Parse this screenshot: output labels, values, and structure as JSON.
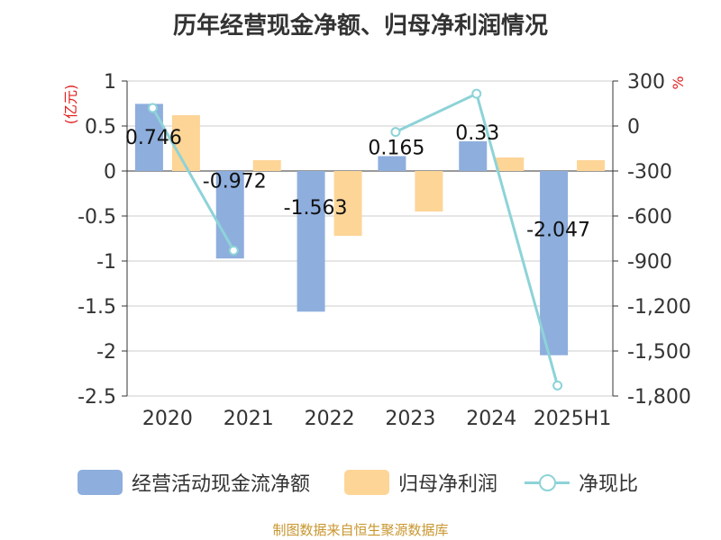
{
  "title": "历年经营现金净额、归母净利润情况",
  "source": "制图数据来自恒生聚源数据库",
  "chart_data": {
    "type": "bar",
    "categories": [
      "2020",
      "2021",
      "2022",
      "2023",
      "2024",
      "2025H1"
    ],
    "left_axis": {
      "unit": "(亿元)",
      "ylim": [
        -2.5,
        1
      ],
      "ticks": [
        "1",
        "0.5",
        "0",
        "-0.5",
        "-1",
        "-1.5",
        "-2",
        "-2.5"
      ],
      "tick_values": [
        1,
        0.5,
        0,
        -0.5,
        -1,
        -1.5,
        -2,
        -2.5
      ]
    },
    "right_axis": {
      "unit": "%",
      "ylim": [
        -1800,
        300
      ],
      "ticks": [
        "300",
        "0",
        "-300",
        "-600",
        "-900",
        "-1,200",
        "-1,500",
        "-1,800"
      ],
      "tick_values": [
        300,
        0,
        -300,
        -600,
        -900,
        -1200,
        -1500,
        -1800
      ]
    },
    "series": [
      {
        "name": "经营活动现金流净额",
        "kind": "bar",
        "axis": "left",
        "color": "#8eaedd",
        "values": [
          0.746,
          -0.972,
          -1.563,
          0.165,
          0.33,
          -2.047
        ],
        "labels": [
          "0.746",
          "-0.972",
          "-1.563",
          "0.165",
          "0.33",
          "-2.047"
        ]
      },
      {
        "name": "归母净利润",
        "kind": "bar",
        "axis": "left",
        "color": "#fdd597",
        "values": [
          0.62,
          0.12,
          -0.72,
          -0.45,
          0.15,
          0.12
        ]
      },
      {
        "name": "净现比",
        "kind": "line",
        "axis": "right",
        "color": "#8dd3d8",
        "values": [
          120,
          -830,
          null,
          -40,
          215,
          -1730
        ]
      }
    ],
    "grid": true,
    "legend_position": "bottom"
  }
}
